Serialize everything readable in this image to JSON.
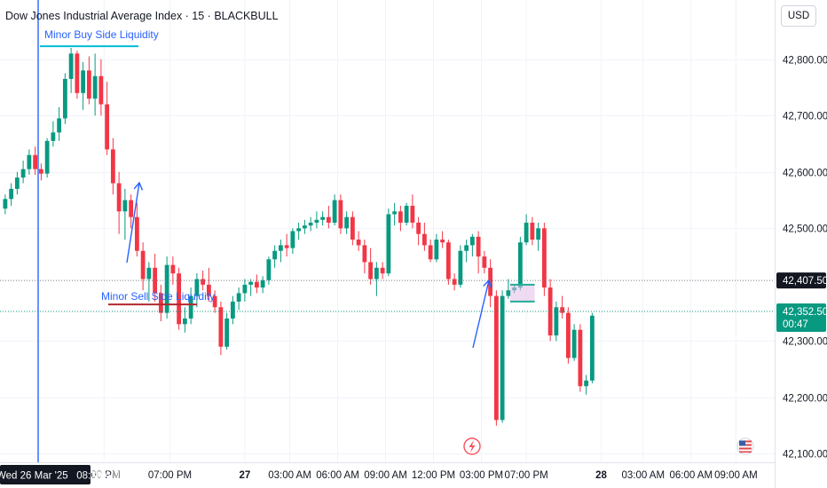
{
  "header": {
    "title": "Dow Jones Industrial Average Index · 15 · BLACKBULL",
    "currency": "USD"
  },
  "chart_data": {
    "type": "candlestick",
    "ylim": [
      42085,
      42905
    ],
    "y_ticks": [
      {
        "value": 42800,
        "label": "42,800.00"
      },
      {
        "value": 42700,
        "label": "42,700.00"
      },
      {
        "value": 42600,
        "label": "42,600.00"
      },
      {
        "value": 42500,
        "label": "42,500.00"
      },
      {
        "value": 42300,
        "label": "42,300.00"
      },
      {
        "value": 42200,
        "label": "42,200.00"
      },
      {
        "value": 42100,
        "label": "42,100.00"
      }
    ],
    "x_ticks": [
      {
        "bar": 16.5,
        "label": ":00 PM"
      },
      {
        "bar": 27.5,
        "label": "07:00 PM"
      },
      {
        "bar": 40,
        "label": "27"
      },
      {
        "bar": 47.5,
        "label": "03:00 AM"
      },
      {
        "bar": 55.5,
        "label": "06:00 AM"
      },
      {
        "bar": 63.5,
        "label": "09:00 AM"
      },
      {
        "bar": 71.5,
        "label": "12:00 PM"
      },
      {
        "bar": 79.5,
        "label": "03:00 PM"
      },
      {
        "bar": 87,
        "label": "07:00 PM"
      },
      {
        "bar": 99.5,
        "label": "28"
      },
      {
        "bar": 106.5,
        "label": "03:00 AM"
      },
      {
        "bar": 114.5,
        "label": "06:00 AM"
      },
      {
        "bar": 122,
        "label": "09:00 AM"
      }
    ],
    "candles": [
      [
        42535,
        42560,
        42525,
        42552
      ],
      [
        42552,
        42580,
        42540,
        42570
      ],
      [
        42570,
        42600,
        42560,
        42590
      ],
      [
        42590,
        42620,
        42580,
        42605
      ],
      [
        42605,
        42640,
        42595,
        42630
      ],
      [
        42630,
        42645,
        42595,
        42605
      ],
      [
        42605,
        42615,
        42585,
        42597
      ],
      [
        42597,
        42660,
        42590,
        42655
      ],
      [
        42655,
        42690,
        42645,
        42670
      ],
      [
        42670,
        42715,
        42655,
        42695
      ],
      [
        42695,
        42775,
        42685,
        42765
      ],
      [
        42765,
        42820,
        42740,
        42810
      ],
      [
        42810,
        42815,
        42730,
        42740
      ],
      [
        42740,
        42795,
        42710,
        42780
      ],
      [
        42780,
        42805,
        42720,
        42730
      ],
      [
        42730,
        42810,
        42700,
        42770
      ],
      [
        42770,
        42800,
        42700,
        42720
      ],
      [
        42720,
        42760,
        42630,
        42640
      ],
      [
        42640,
        42660,
        42560,
        42580
      ],
      [
        42580,
        42600,
        42490,
        42530
      ],
      [
        42530,
        42570,
        42480,
        42550
      ],
      [
        42550,
        42560,
        42500,
        42520
      ],
      [
        42520,
        42545,
        42450,
        42460
      ],
      [
        42460,
        42475,
        42390,
        42410
      ],
      [
        42410,
        42440,
        42370,
        42430
      ],
      [
        42430,
        42455,
        42370,
        42385
      ],
      [
        42385,
        42400,
        42335,
        42350
      ],
      [
        42350,
        42450,
        42340,
        42435
      ],
      [
        42435,
        42450,
        42400,
        42420
      ],
      [
        42420,
        42430,
        42320,
        42330
      ],
      [
        42330,
        42360,
        42315,
        42340
      ],
      [
        42340,
        42395,
        42330,
        42380
      ],
      [
        42380,
        42420,
        42360,
        42410
      ],
      [
        42410,
        42425,
        42390,
        42400
      ],
      [
        42400,
        42430,
        42370,
        42380
      ],
      [
        42380,
        42390,
        42350,
        42360
      ],
      [
        42360,
        42370,
        42275,
        42290
      ],
      [
        42290,
        42350,
        42285,
        42340
      ],
      [
        42340,
        42380,
        42330,
        42370
      ],
      [
        42370,
        42395,
        42355,
        42385
      ],
      [
        42385,
        42410,
        42370,
        42400
      ],
      [
        42400,
        42410,
        42380,
        42405
      ],
      [
        42405,
        42418,
        42385,
        42395
      ],
      [
        42395,
        42415,
        42385,
        42408
      ],
      [
        42408,
        42450,
        42400,
        42445
      ],
      [
        42445,
        42470,
        42430,
        42460
      ],
      [
        42460,
        42480,
        42440,
        42470
      ],
      [
        42470,
        42490,
        42450,
        42465
      ],
      [
        42465,
        42500,
        42455,
        42495
      ],
      [
        42495,
        42510,
        42480,
        42500
      ],
      [
        42500,
        42515,
        42490,
        42505
      ],
      [
        42505,
        42520,
        42495,
        42510
      ],
      [
        42510,
        42530,
        42500,
        42515
      ],
      [
        42515,
        42530,
        42505,
        42520
      ],
      [
        42520,
        42540,
        42500,
        42510
      ],
      [
        42510,
        42560,
        42505,
        42550
      ],
      [
        42550,
        42560,
        42490,
        42500
      ],
      [
        42500,
        42530,
        42490,
        42520
      ],
      [
        42520,
        42530,
        42470,
        42480
      ],
      [
        42480,
        42495,
        42460,
        42470
      ],
      [
        42470,
        42480,
        42420,
        42440
      ],
      [
        42440,
        42465,
        42400,
        42410
      ],
      [
        42410,
        42440,
        42380,
        42430
      ],
      [
        42430,
        42440,
        42410,
        42420
      ],
      [
        42420,
        42535,
        42415,
        42525
      ],
      [
        42525,
        42545,
        42505,
        42530
      ],
      [
        42530,
        42540,
        42495,
        42510
      ],
      [
        42510,
        42545,
        42505,
        42540
      ],
      [
        42540,
        42560,
        42500,
        42510
      ],
      [
        42510,
        42520,
        42470,
        42490
      ],
      [
        42490,
        42510,
        42460,
        42470
      ],
      [
        42470,
        42480,
        42440,
        42445
      ],
      [
        42445,
        42490,
        42440,
        42480
      ],
      [
        42480,
        42495,
        42465,
        42475
      ],
      [
        42475,
        42480,
        42400,
        42410
      ],
      [
        42410,
        42420,
        42390,
        42400
      ],
      [
        42400,
        42470,
        42395,
        42460
      ],
      [
        42460,
        42480,
        42440,
        42470
      ],
      [
        42470,
        42490,
        42450,
        42485
      ],
      [
        42485,
        42495,
        42420,
        42450
      ],
      [
        42450,
        42460,
        42420,
        42430
      ],
      [
        42430,
        42445,
        42360,
        42380
      ],
      [
        42380,
        42390,
        42150,
        42160
      ],
      [
        42160,
        42390,
        42155,
        42380
      ],
      [
        42380,
        42410,
        42375,
        42390
      ],
      [
        42390,
        42400,
        42385,
        42395
      ],
      [
        42395,
        42485,
        42390,
        42475
      ],
      [
        42475,
        42525,
        42470,
        42510
      ],
      [
        42510,
        42520,
        42470,
        42480
      ],
      [
        42480,
        42510,
        42460,
        42500
      ],
      [
        42500,
        42510,
        42380,
        42395
      ],
      [
        42395,
        42410,
        42300,
        42310
      ],
      [
        42310,
        42370,
        42300,
        42360
      ],
      [
        42360,
        42380,
        42340,
        42350
      ],
      [
        42350,
        42360,
        42260,
        42270
      ],
      [
        42270,
        42330,
        42265,
        42320
      ],
      [
        42320,
        42330,
        42210,
        42220
      ],
      [
        42220,
        42240,
        42205,
        42230
      ],
      [
        42230,
        42350,
        42225,
        42345
      ]
    ],
    "current_price": {
      "label": "42,352.50",
      "countdown": "00:47"
    },
    "crosshair_price": {
      "label": "42,407.50"
    },
    "crosshair_time": {
      "label": "Wed 26 Mar '25   08:30 AM"
    },
    "annotations": [
      {
        "text": "Minor Buy Side Liquidity",
        "price": 42823
      },
      {
        "text": "Minor Sell Side Liquidity",
        "price": 42365
      }
    ]
  }
}
